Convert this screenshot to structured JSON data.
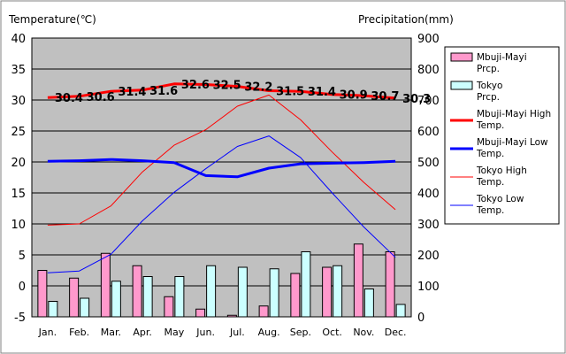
{
  "chart_data": {
    "type": "bar",
    "left_axis_title": "Temperature(℃)",
    "right_axis_title": "Precipitation(mm)",
    "categories": [
      "Jan.",
      "Feb.",
      "Mar.",
      "Apr.",
      "May",
      "Jun.",
      "Jul.",
      "Aug.",
      "Sep.",
      "Oct.",
      "Nov.",
      "Dec."
    ],
    "ylim_left": [
      -5,
      40
    ],
    "yticks_left": [
      -5,
      0,
      5,
      10,
      15,
      20,
      25,
      30,
      35,
      40
    ],
    "ylim_right": [
      0,
      900
    ],
    "yticks_right": [
      0,
      100,
      200,
      300,
      400,
      500,
      600,
      700,
      800,
      900
    ],
    "grid": true,
    "legend_position": "right",
    "bar_series": [
      {
        "name": "Mbuji-Mayi Prcp.",
        "axis": "right",
        "color": "#ff99cc",
        "values": [
          150,
          125,
          205,
          165,
          65,
          25,
          5,
          35,
          140,
          160,
          235,
          210
        ]
      },
      {
        "name": "Tokyo Prcp.",
        "axis": "right",
        "color": "#ccffff",
        "values": [
          50,
          60,
          115,
          130,
          130,
          165,
          160,
          155,
          210,
          165,
          90,
          40
        ]
      }
    ],
    "line_series": [
      {
        "name": "Mbuji-Mayi High Temp.",
        "axis": "left",
        "color": "#ff0000",
        "width": 3,
        "values": [
          30.4,
          30.6,
          31.4,
          31.6,
          32.6,
          32.5,
          32.2,
          31.5,
          31.4,
          30.9,
          30.7,
          30.3
        ],
        "data_labels": [
          "30.4",
          "30.6",
          "31.4",
          "31.6",
          "32.6",
          "32.5",
          "32.2",
          "31.5",
          "31.4",
          "30.9",
          "30.7",
          "30.3"
        ]
      },
      {
        "name": "Mbuji-Mayi Low Temp.",
        "axis": "left",
        "color": "#0000ff",
        "width": 3,
        "values": [
          20.1,
          20.2,
          20.4,
          20.2,
          19.9,
          17.8,
          17.6,
          19.0,
          19.7,
          19.8,
          19.9,
          20.1
        ]
      },
      {
        "name": "Tokyo High Temp.",
        "axis": "left",
        "color": "#ff0000",
        "width": 1,
        "values": [
          9.8,
          10.0,
          12.9,
          18.4,
          22.7,
          25.2,
          29.0,
          30.8,
          26.8,
          21.6,
          16.7,
          12.3
        ]
      },
      {
        "name": "Tokyo Low Temp.",
        "axis": "left",
        "color": "#0000ff",
        "width": 1,
        "values": [
          2.1,
          2.4,
          5.1,
          10.5,
          15.1,
          18.9,
          22.5,
          24.2,
          20.7,
          15.0,
          9.5,
          4.6
        ]
      }
    ],
    "legend": [
      {
        "label": "Mbuji-Mayi Prcp.",
        "kind": "box",
        "color": "#ff99cc"
      },
      {
        "label": "Tokyo Prcp.",
        "kind": "box",
        "color": "#ccffff"
      },
      {
        "label": "Mbuji-Mayi High Temp.",
        "kind": "line",
        "color": "#ff0000",
        "width": 3
      },
      {
        "label": "Mbuji-Mayi Low Temp.",
        "kind": "line",
        "color": "#0000ff",
        "width": 3
      },
      {
        "label": "Tokyo High Temp.",
        "kind": "line",
        "color": "#ff0000",
        "width": 1
      },
      {
        "label": "Tokyo Low Temp.",
        "kind": "line",
        "color": "#0000ff",
        "width": 1
      }
    ],
    "colors": {
      "plot_background": "#c0c0c0",
      "gridline": "#000000"
    }
  }
}
